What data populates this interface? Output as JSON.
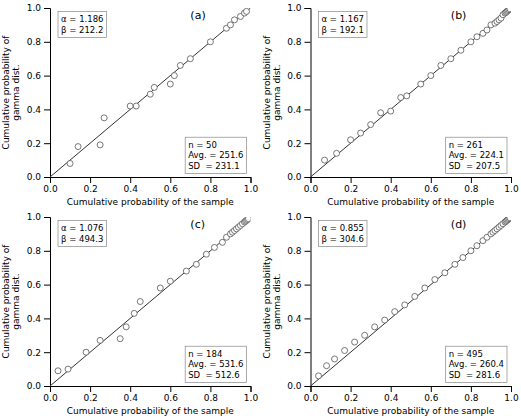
{
  "chart_data": [
    {
      "type": "scatter",
      "title": "(a)",
      "xlabel": "Cumulative probability of the sample",
      "ylabel": "Cumulative probability of\ngamma dist.",
      "xlim": [
        0,
        1
      ],
      "ylim": [
        0,
        1
      ],
      "xticks": [
        {
          "value": 0,
          "label": "0.0"
        },
        0.2,
        0.4,
        0.6,
        0.8,
        {
          "value": 1,
          "label": "1.0"
        }
      ],
      "yticks": [
        {
          "value": 0,
          "label": "0.0"
        },
        0.2,
        0.4,
        0.6,
        0.8,
        {
          "value": 1,
          "label": "1.0"
        }
      ],
      "grid": false,
      "annotations": [
        "α = 1.186\nβ = 212.2",
        "n = 50\nAvg. = 251.6\nSD  = 231.1"
      ],
      "series": [
        {
          "type": "scatter",
          "marker": "circle",
          "color": "#555555",
          "x": [
            0.1,
            0.14,
            0.25,
            0.27,
            0.4,
            0.43,
            0.5,
            0.52,
            0.6,
            0.62,
            0.65,
            0.7,
            0.8,
            0.88,
            0.9,
            0.92,
            0.95,
            0.97,
            0.98
          ],
          "values": [
            0.08,
            0.18,
            0.19,
            0.35,
            0.42,
            0.42,
            0.49,
            0.53,
            0.55,
            0.6,
            0.66,
            0.7,
            0.8,
            0.88,
            0.9,
            0.93,
            0.95,
            0.97,
            0.98
          ]
        },
        {
          "type": "line",
          "line_style": "solid",
          "color": "#333333",
          "x": [
            0,
            1
          ],
          "values": [
            0,
            1
          ]
        }
      ]
    },
    {
      "type": "scatter",
      "title": "(b)",
      "xlabel": "Cumulative probability of the sample",
      "ylabel": "Cumulative probability of\ngamma dist.",
      "xlim": [
        0,
        1
      ],
      "ylim": [
        0,
        1
      ],
      "xticks": [
        {
          "value": 0,
          "label": "0.0"
        },
        0.2,
        0.4,
        0.6,
        0.8,
        {
          "value": 1,
          "label": "1.0"
        }
      ],
      "yticks": [
        {
          "value": 0,
          "label": "0.0"
        },
        0.2,
        0.4,
        0.6,
        0.8,
        {
          "value": 1,
          "label": "1.0"
        }
      ],
      "grid": false,
      "annotations": [
        "α = 1.167\nβ = 192.1",
        "n = 261\nAvg. = 224.1\nSD  = 207.5"
      ],
      "series": [
        {
          "type": "scatter",
          "marker": "circle",
          "color": "#555555",
          "x": [
            0.07,
            0.13,
            0.2,
            0.25,
            0.3,
            0.35,
            0.4,
            0.45,
            0.48,
            0.55,
            0.6,
            0.65,
            0.7,
            0.75,
            0.8,
            0.83,
            0.86,
            0.88,
            0.9,
            0.92,
            0.93,
            0.94,
            0.95,
            0.96,
            0.97,
            0.975,
            0.98,
            0.985,
            0.99,
            0.995
          ],
          "values": [
            0.1,
            0.14,
            0.22,
            0.26,
            0.31,
            0.38,
            0.39,
            0.47,
            0.48,
            0.55,
            0.6,
            0.66,
            0.7,
            0.75,
            0.8,
            0.83,
            0.85,
            0.87,
            0.9,
            0.91,
            0.92,
            0.93,
            0.94,
            0.96,
            0.97,
            0.975,
            0.98,
            0.985,
            0.99,
            0.995
          ]
        },
        {
          "type": "line",
          "line_style": "solid",
          "color": "#333333",
          "x": [
            0,
            1
          ],
          "values": [
            0,
            1
          ]
        }
      ]
    },
    {
      "type": "scatter",
      "title": "(c)",
      "xlabel": "Cumulative probability of the sample",
      "ylabel": "Cumulative probability of\ngamma dist.",
      "xlim": [
        0,
        1
      ],
      "ylim": [
        0,
        1
      ],
      "xticks": [
        {
          "value": 0,
          "label": "0.0"
        },
        0.2,
        0.4,
        0.6,
        0.8,
        {
          "value": 1,
          "label": "1.0"
        }
      ],
      "yticks": [
        {
          "value": 0,
          "label": "0.0"
        },
        0.2,
        0.4,
        0.6,
        0.8,
        {
          "value": 1,
          "label": "1.0"
        }
      ],
      "grid": false,
      "annotations": [
        "α = 1.076\nβ = 494.3",
        "n = 184\nAvg. = 531.6\nSD  = 512.6"
      ],
      "series": [
        {
          "type": "scatter",
          "marker": "circle",
          "color": "#555555",
          "x": [
            0.04,
            0.09,
            0.18,
            0.25,
            0.35,
            0.38,
            0.42,
            0.45,
            0.55,
            0.6,
            0.68,
            0.73,
            0.78,
            0.82,
            0.86,
            0.88,
            0.9,
            0.91,
            0.92,
            0.93,
            0.94,
            0.95,
            0.96,
            0.97,
            0.975,
            0.98,
            0.985,
            0.99
          ],
          "values": [
            0.09,
            0.1,
            0.2,
            0.27,
            0.28,
            0.35,
            0.43,
            0.5,
            0.58,
            0.62,
            0.68,
            0.72,
            0.78,
            0.82,
            0.85,
            0.88,
            0.9,
            0.91,
            0.92,
            0.93,
            0.94,
            0.95,
            0.96,
            0.97,
            0.975,
            0.98,
            0.985,
            0.99
          ]
        },
        {
          "type": "line",
          "line_style": "solid",
          "color": "#333333",
          "x": [
            0,
            1
          ],
          "values": [
            0,
            1
          ]
        }
      ]
    },
    {
      "type": "scatter",
      "title": "(d)",
      "xlabel": "Cumulative probability of the sample",
      "ylabel": "Cumulative probability of\ngamma dist.",
      "xlim": [
        0,
        1
      ],
      "ylim": [
        0,
        1
      ],
      "xticks": [
        {
          "value": 0,
          "label": "0.0"
        },
        0.2,
        0.4,
        0.6,
        0.8,
        {
          "value": 1,
          "label": "1.0"
        }
      ],
      "yticks": [
        {
          "value": 0,
          "label": "0.0"
        },
        0.2,
        0.4,
        0.6,
        0.8,
        {
          "value": 1,
          "label": "1.0"
        }
      ],
      "grid": false,
      "annotations": [
        "α = 0.855\nβ = 304.6",
        "n = 495\nAvg. = 260.4\nSD  = 281.6"
      ],
      "series": [
        {
          "type": "scatter",
          "marker": "circle",
          "color": "#555555",
          "x": [
            0.04,
            0.08,
            0.12,
            0.17,
            0.22,
            0.27,
            0.32,
            0.37,
            0.42,
            0.47,
            0.52,
            0.57,
            0.62,
            0.67,
            0.72,
            0.76,
            0.8,
            0.83,
            0.86,
            0.88,
            0.9,
            0.91,
            0.92,
            0.93,
            0.94,
            0.95,
            0.96,
            0.97,
            0.975,
            0.98,
            0.985,
            0.99,
            0.995
          ],
          "values": [
            0.06,
            0.12,
            0.16,
            0.21,
            0.26,
            0.3,
            0.35,
            0.39,
            0.44,
            0.48,
            0.53,
            0.58,
            0.63,
            0.67,
            0.72,
            0.76,
            0.8,
            0.83,
            0.86,
            0.88,
            0.9,
            0.91,
            0.92,
            0.93,
            0.94,
            0.95,
            0.96,
            0.97,
            0.975,
            0.98,
            0.985,
            0.99,
            0.995
          ]
        },
        {
          "type": "line",
          "line_style": "solid",
          "color": "#333333",
          "x": [
            0,
            1
          ],
          "values": [
            0,
            1
          ]
        }
      ]
    }
  ]
}
